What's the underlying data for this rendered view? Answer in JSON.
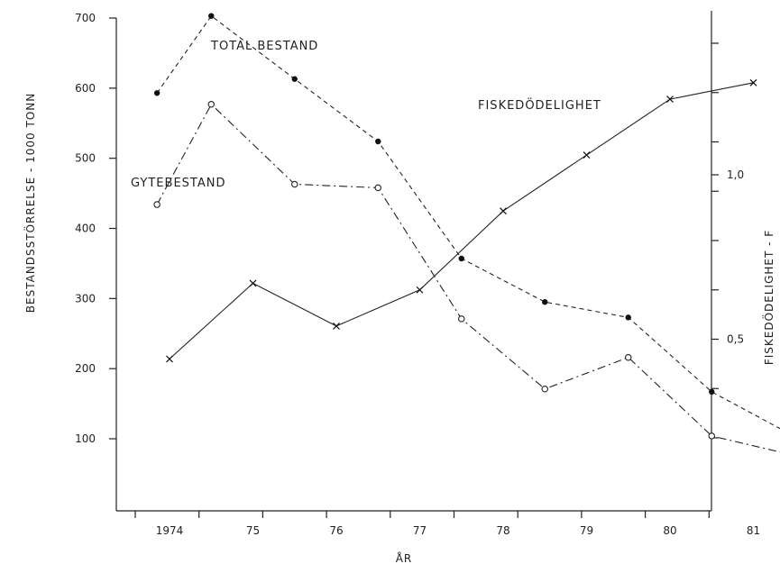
{
  "chart_data": {
    "type": "line",
    "xlabel": "ÅR",
    "ylabel": "BESTANDSSTÖRRELSE   -   1000 TONN",
    "y2label": "FISKEDÖDELIGHET   -   F",
    "x_tick_labels": [
      "1974",
      "75",
      "76",
      "77",
      "78",
      "79",
      "80",
      "81"
    ],
    "y_ticks": [
      "100",
      "200",
      "300",
      "400",
      "500",
      "600",
      "700"
    ],
    "y2_ticks": [
      "0,5",
      "1,0"
    ],
    "ylim": [
      20,
      730
    ],
    "y2lim": [
      0.04,
      1.35
    ],
    "grid": false,
    "series": [
      {
        "name": "TOTAL BESTAND",
        "axis": "left",
        "marker": "filled-circle",
        "line_style": "dashed",
        "points": [
          {
            "x": 1973.85,
            "y": 593
          },
          {
            "x": 1974.5,
            "y": 703
          },
          {
            "x": 1975.5,
            "y": 613
          },
          {
            "x": 1976.5,
            "y": 524
          },
          {
            "x": 1977.5,
            "y": 357
          },
          {
            "x": 1978.5,
            "y": 295
          },
          {
            "x": 1979.5,
            "y": 273
          },
          {
            "x": 1980.5,
            "y": 167
          },
          {
            "x": 1981.5,
            "y": 103
          }
        ]
      },
      {
        "name": "GYTEBESTAND",
        "axis": "left",
        "marker": "open-circle",
        "line_style": "dash-dot",
        "points": [
          {
            "x": 1973.85,
            "y": 434
          },
          {
            "x": 1974.5,
            "y": 577
          },
          {
            "x": 1975.5,
            "y": 463
          },
          {
            "x": 1976.5,
            "y": 458
          },
          {
            "x": 1977.5,
            "y": 271
          },
          {
            "x": 1978.5,
            "y": 171
          },
          {
            "x": 1979.5,
            "y": 216
          },
          {
            "x": 1980.5,
            "y": 104
          },
          {
            "x": 1981.5,
            "y": 76
          }
        ]
      },
      {
        "name": "FISKEDÖDELIGHET",
        "axis": "right",
        "marker": "x",
        "line_style": "solid",
        "points": [
          {
            "x": 1974,
            "y": 0.44
          },
          {
            "x": 1975,
            "y": 0.67
          },
          {
            "x": 1976,
            "y": 0.54
          },
          {
            "x": 1977,
            "y": 0.65
          },
          {
            "x": 1978,
            "y": 0.89
          },
          {
            "x": 1979,
            "y": 1.06
          },
          {
            "x": 1980,
            "y": 1.23
          },
          {
            "x": 1981,
            "y": 1.28
          }
        ]
      }
    ]
  }
}
